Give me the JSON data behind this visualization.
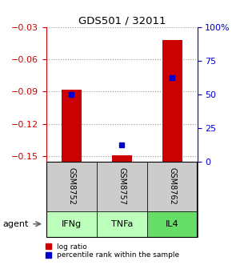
{
  "title": "GDS501 / 32011",
  "samples": [
    "GSM8752",
    "GSM8757",
    "GSM8762"
  ],
  "agents": [
    "IFNg",
    "TNFa",
    "IL4"
  ],
  "log_ratios": [
    -0.088,
    -0.149,
    -0.042
  ],
  "percentile_ranks": [
    50,
    12,
    62
  ],
  "ylim_left": [
    -0.155,
    -0.03
  ],
  "ylim_right": [
    0,
    100
  ],
  "yticks_left": [
    -0.15,
    -0.12,
    -0.09,
    -0.06,
    -0.03
  ],
  "yticks_right": [
    0,
    25,
    50,
    75,
    100
  ],
  "ytick_right_labels": [
    "0",
    "25",
    "50",
    "75",
    "100%"
  ],
  "bar_color": "#cc0000",
  "percentile_color": "#0000cc",
  "bar_width": 0.4,
  "sample_bg": "#cccccc",
  "agent_colors": [
    "#bbffbb",
    "#bbffbb",
    "#66dd66"
  ],
  "legend_bar_label": "log ratio",
  "legend_pct_label": "percentile rank within the sample",
  "fig_width": 2.9,
  "fig_height": 3.36,
  "dpi": 100
}
